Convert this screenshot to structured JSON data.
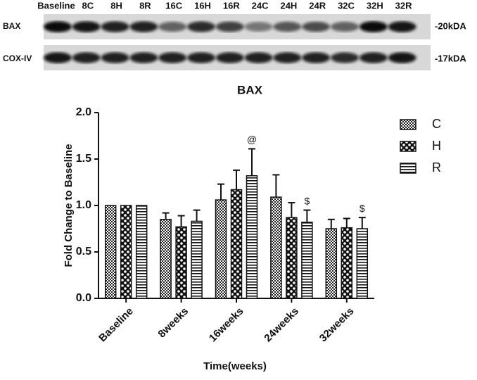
{
  "blot": {
    "lanes": [
      "Baseline",
      "8C",
      "8H",
      "8R",
      "16C",
      "16H",
      "16R",
      "24C",
      "24H",
      "24R",
      "32C",
      "32H",
      "32R"
    ],
    "rows": [
      {
        "label": "BAX",
        "size": "-20kDA"
      },
      {
        "label": "COX-IV",
        "size": "-17kDA"
      }
    ]
  },
  "chart_data": {
    "type": "bar",
    "title": "BAX",
    "x_label": "Time(weeks)",
    "y_label": "Fold Change to Baseline",
    "categories": [
      "Baseline",
      "8weeks",
      "16weeks",
      "24weeks",
      "32weeks"
    ],
    "series": [
      {
        "name": "C",
        "pattern": "checker-small",
        "values": [
          1.0,
          0.85,
          1.06,
          1.09,
          0.75
        ],
        "errors": [
          0,
          0.07,
          0.17,
          0.24,
          0.1
        ]
      },
      {
        "name": "H",
        "pattern": "checker-large",
        "values": [
          1.0,
          0.77,
          1.17,
          0.87,
          0.76
        ],
        "errors": [
          0,
          0.12,
          0.21,
          0.16,
          0.1
        ]
      },
      {
        "name": "R",
        "pattern": "stripes",
        "values": [
          1.0,
          0.83,
          1.32,
          0.82,
          0.75
        ],
        "errors": [
          0,
          0.12,
          0.29,
          0.13,
          0.12
        ]
      }
    ],
    "annotations": [
      {
        "text": "@",
        "category": 2,
        "series": 2
      },
      {
        "text": "$",
        "category": 3,
        "series": 2
      },
      {
        "text": "$",
        "category": 4,
        "series": 2
      }
    ],
    "ylim": [
      0,
      2.0
    ],
    "yticks": [
      {
        "value": 0,
        "label": "0.0"
      },
      {
        "value": 0.5,
        "label": "0.5"
      },
      {
        "value": 1.0,
        "label": "1.0"
      },
      {
        "value": 1.5,
        "label": "1.5"
      },
      {
        "value": 2.0,
        "label": "2.0"
      }
    ],
    "legend": "right"
  }
}
